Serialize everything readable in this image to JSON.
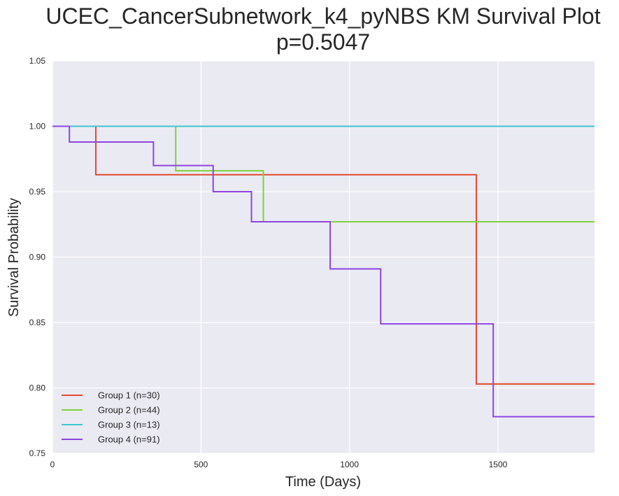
{
  "chart_data": {
    "type": "line",
    "step": true,
    "title_line1": "UCEC_CancerSubnetwork_k4_pyNBS KM Survival Plot",
    "title_line2": "p=0.5047",
    "xlabel": "Time (Days)",
    "ylabel": "Survival Probability",
    "xlim": [
      0,
      1825
    ],
    "ylim": [
      0.75,
      1.05
    ],
    "x_ticks": [
      0,
      500,
      1000,
      1500
    ],
    "x_tick_labels": [
      "0",
      "500",
      "1000",
      "1500"
    ],
    "y_ticks": [
      0.75,
      0.8,
      0.85,
      0.9,
      0.95,
      1.0,
      1.05
    ],
    "y_tick_labels": [
      "0.75",
      "0.80",
      "0.85",
      "0.90",
      "0.95",
      "1.00",
      "1.05"
    ],
    "grid": true,
    "legend_position": "bottom-left",
    "colors": {
      "plot_background": "#EAEAF2",
      "grid": "#FFFFFF"
    },
    "series": [
      {
        "name": "Group 1 (n=30)",
        "color": "#E24A33",
        "x": [
          0,
          146,
          1427,
          1825
        ],
        "y": [
          1.0,
          0.963,
          0.803,
          0.803
        ]
      },
      {
        "name": "Group 2 (n=44)",
        "color": "#7FD13B",
        "x": [
          0,
          415,
          710,
          1825
        ],
        "y": [
          1.0,
          0.966,
          0.927,
          0.927
        ]
      },
      {
        "name": "Group 3 (n=13)",
        "color": "#40C4D0",
        "x": [
          0,
          1825
        ],
        "y": [
          1.0,
          1.0
        ]
      },
      {
        "name": "Group 4 (n=91)",
        "color": "#8E44E0",
        "x": [
          0,
          57,
          340,
          541,
          670,
          935,
          1105,
          1484,
          1825
        ],
        "y": [
          1.0,
          0.988,
          0.97,
          0.95,
          0.927,
          0.891,
          0.849,
          0.778,
          0.778
        ]
      }
    ]
  }
}
